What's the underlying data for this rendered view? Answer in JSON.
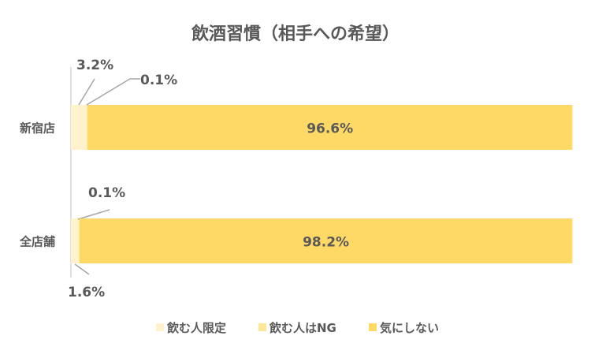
{
  "chart_data": {
    "type": "bar",
    "orientation": "horizontal",
    "stacked": true,
    "title": "飲酒習慣（相手への希望）",
    "categories": [
      "新宿店",
      "全店舗"
    ],
    "series": [
      {
        "name": "飲む人限定",
        "values": [
          3.2,
          1.6
        ],
        "labels": [
          "3.2%",
          "1.6%"
        ],
        "color": "#FFF2CC"
      },
      {
        "name": "飲む人はNG",
        "values": [
          0.1,
          0.1
        ],
        "labels": [
          "0.1%",
          "0.1%"
        ],
        "color": "#FFE699"
      },
      {
        "name": "気にしない",
        "values": [
          96.6,
          98.2
        ],
        "labels": [
          "96.6%",
          "98.2%"
        ],
        "color": "#FFD966"
      }
    ],
    "xlim": [
      0,
      100
    ],
    "grid": false,
    "legend": "bottom"
  }
}
